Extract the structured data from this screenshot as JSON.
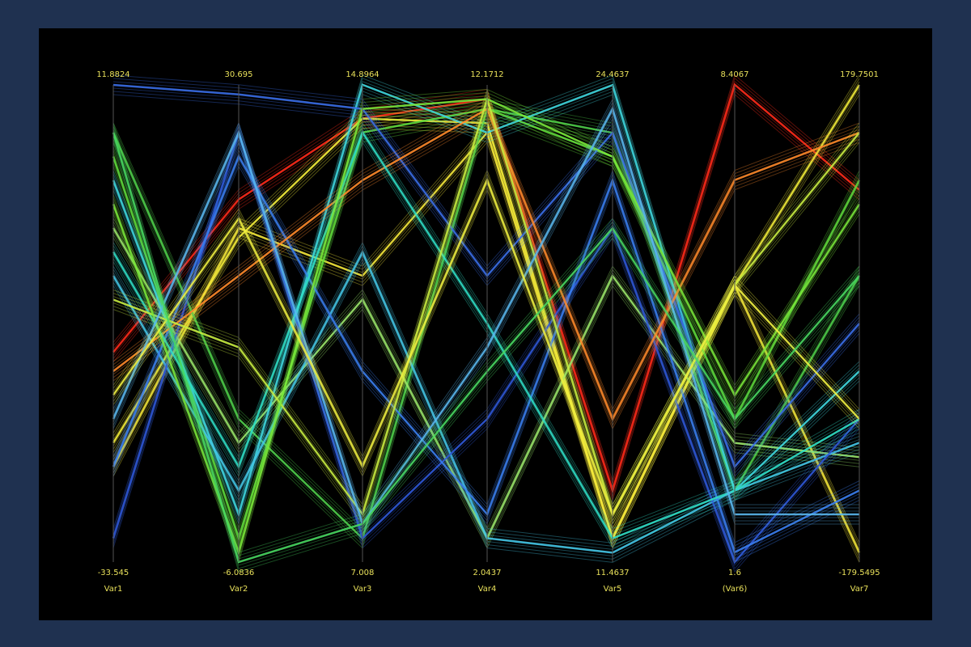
{
  "chart_data": {
    "type": "parallel",
    "axes": [
      {
        "name": "Var1",
        "ylim": [
          -33.545,
          11.8824
        ]
      },
      {
        "name": "Var2",
        "ylim": [
          -6.0836,
          30.695
        ]
      },
      {
        "name": "Var3",
        "ylim": [
          7.008,
          14.8964
        ]
      },
      {
        "name": "Var4",
        "ylim": [
          2.0437,
          12.1712
        ]
      },
      {
        "name": "Var5",
        "ylim": [
          11.4637,
          24.4637
        ]
      },
      {
        "name": "(Var6)",
        "ylim": [
          1.6,
          8.4067
        ]
      },
      {
        "name": "Var7",
        "ylim": [
          -179.5495,
          179.7501
        ]
      }
    ],
    "series": [
      {
        "color": "#ff2a1a",
        "values": [
          -13.56,
          21.87,
          14.34,
          11.87,
          13.41,
          8.41,
          100.7
        ]
      },
      {
        "color": "#f5f03a",
        "values": [
          -22.19,
          18.93,
          14.34,
          11.36,
          12.11,
          5.55,
          179.75
        ]
      },
      {
        "color": "#f5e83a",
        "values": [
          -24.46,
          19.66,
          11.74,
          11.16,
          12.11,
          5.55,
          -172.4
        ]
      },
      {
        "color": "#4fd04a",
        "values": [
          7.34,
          4.95,
          7.4,
          11.66,
          23.16,
          2.62,
          36.03
        ]
      },
      {
        "color": "#5fdc3c",
        "values": [
          5.07,
          -4.24,
          14.11,
          11.66,
          22.51,
          3.64,
          107.9
        ]
      },
      {
        "color": "#9be86a",
        "values": [
          -1.74,
          3.11,
          11.35,
          2.55,
          19.26,
          3.3,
          -100.5
        ]
      },
      {
        "color": "#3fd8e0",
        "values": [
          2.8,
          -2.41,
          14.9,
          11.16,
          24.46,
          2.62,
          -35.8
        ]
      },
      {
        "color": "#45c8e8",
        "values": [
          -6.29,
          -0.57,
          12.13,
          2.55,
          11.72,
          2.62,
          -89.7
        ]
      },
      {
        "color": "#3a6ee8",
        "values": [
          11.88,
          29.96,
          14.5,
          8.12,
          23.16,
          2.96,
          0.1
        ]
      },
      {
        "color": "#2f58d8",
        "values": [
          -31.27,
          27.02,
          7.4,
          5.08,
          20.56,
          1.6,
          -71.8
        ]
      },
      {
        "color": "#3a7ef0",
        "values": [
          -24.46,
          25.18,
          10.16,
          3.06,
          21.86,
          1.74,
          -125.65
        ]
      },
      {
        "color": "#ff8a2a",
        "values": [
          -15.37,
          15.98,
          13.32,
          11.66,
          15.36,
          7.05,
          143.8
        ]
      },
      {
        "color": "#30e0c8",
        "values": [
          -4.02,
          1.27,
          14.11,
          7.11,
          12.11,
          2.62,
          -71.8
        ]
      },
      {
        "color": "#c8ec40",
        "values": [
          -8.56,
          10.47,
          7.8,
          11.87,
          12.76,
          5.55,
          143.8
        ]
      },
      {
        "color": "#7ae83a",
        "values": [
          0.53,
          -5.35,
          14.5,
          11.87,
          22.51,
          3.98,
          89.9
        ]
      },
      {
        "color": "#5ab8f0",
        "values": [
          -19.92,
          27.02,
          7.64,
          6.6,
          23.81,
          2.28,
          -143.6
        ]
      },
      {
        "color": "#f0f040",
        "values": [
          -17.64,
          20.4,
          8.59,
          10.15,
          12.76,
          5.55,
          -71.8
        ]
      },
      {
        "color": "#48d860",
        "values": [
          7.34,
          -6.08,
          7.64,
          6.09,
          20.56,
          3.64,
          36.03
        ]
      }
    ]
  }
}
